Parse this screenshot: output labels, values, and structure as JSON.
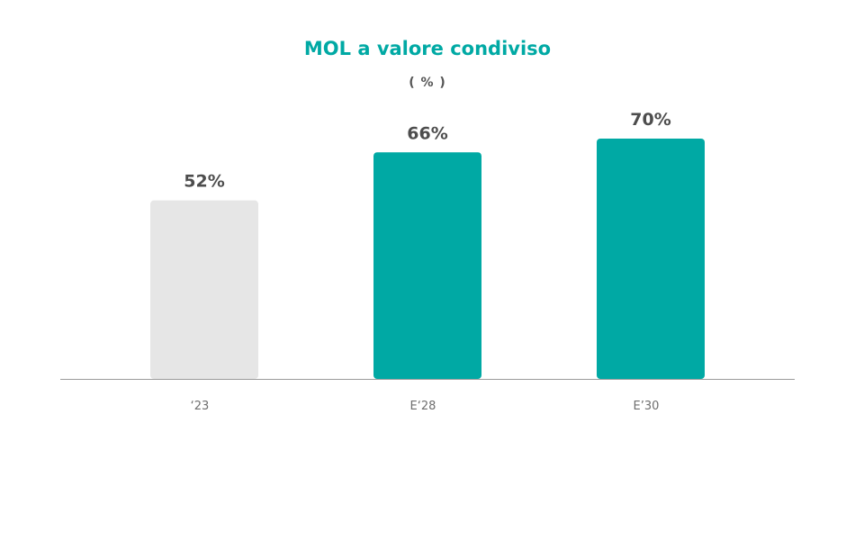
{
  "chart_data": {
    "type": "bar",
    "title": "MOL a valore condiviso",
    "subtitle": "( % )",
    "categories": [
      "‘23",
      "E‘28",
      "E’30"
    ],
    "values": [
      52,
      66,
      70
    ],
    "value_labels": [
      "52%",
      "66%",
      "70%"
    ],
    "ylim": [
      0,
      70
    ],
    "grid": false,
    "colors": {
      "bars": [
        "#e6e6e6",
        "#00a9a4",
        "#00a9a4"
      ],
      "title": "#00a9a4",
      "baseline": "#9a9a9a"
    }
  }
}
